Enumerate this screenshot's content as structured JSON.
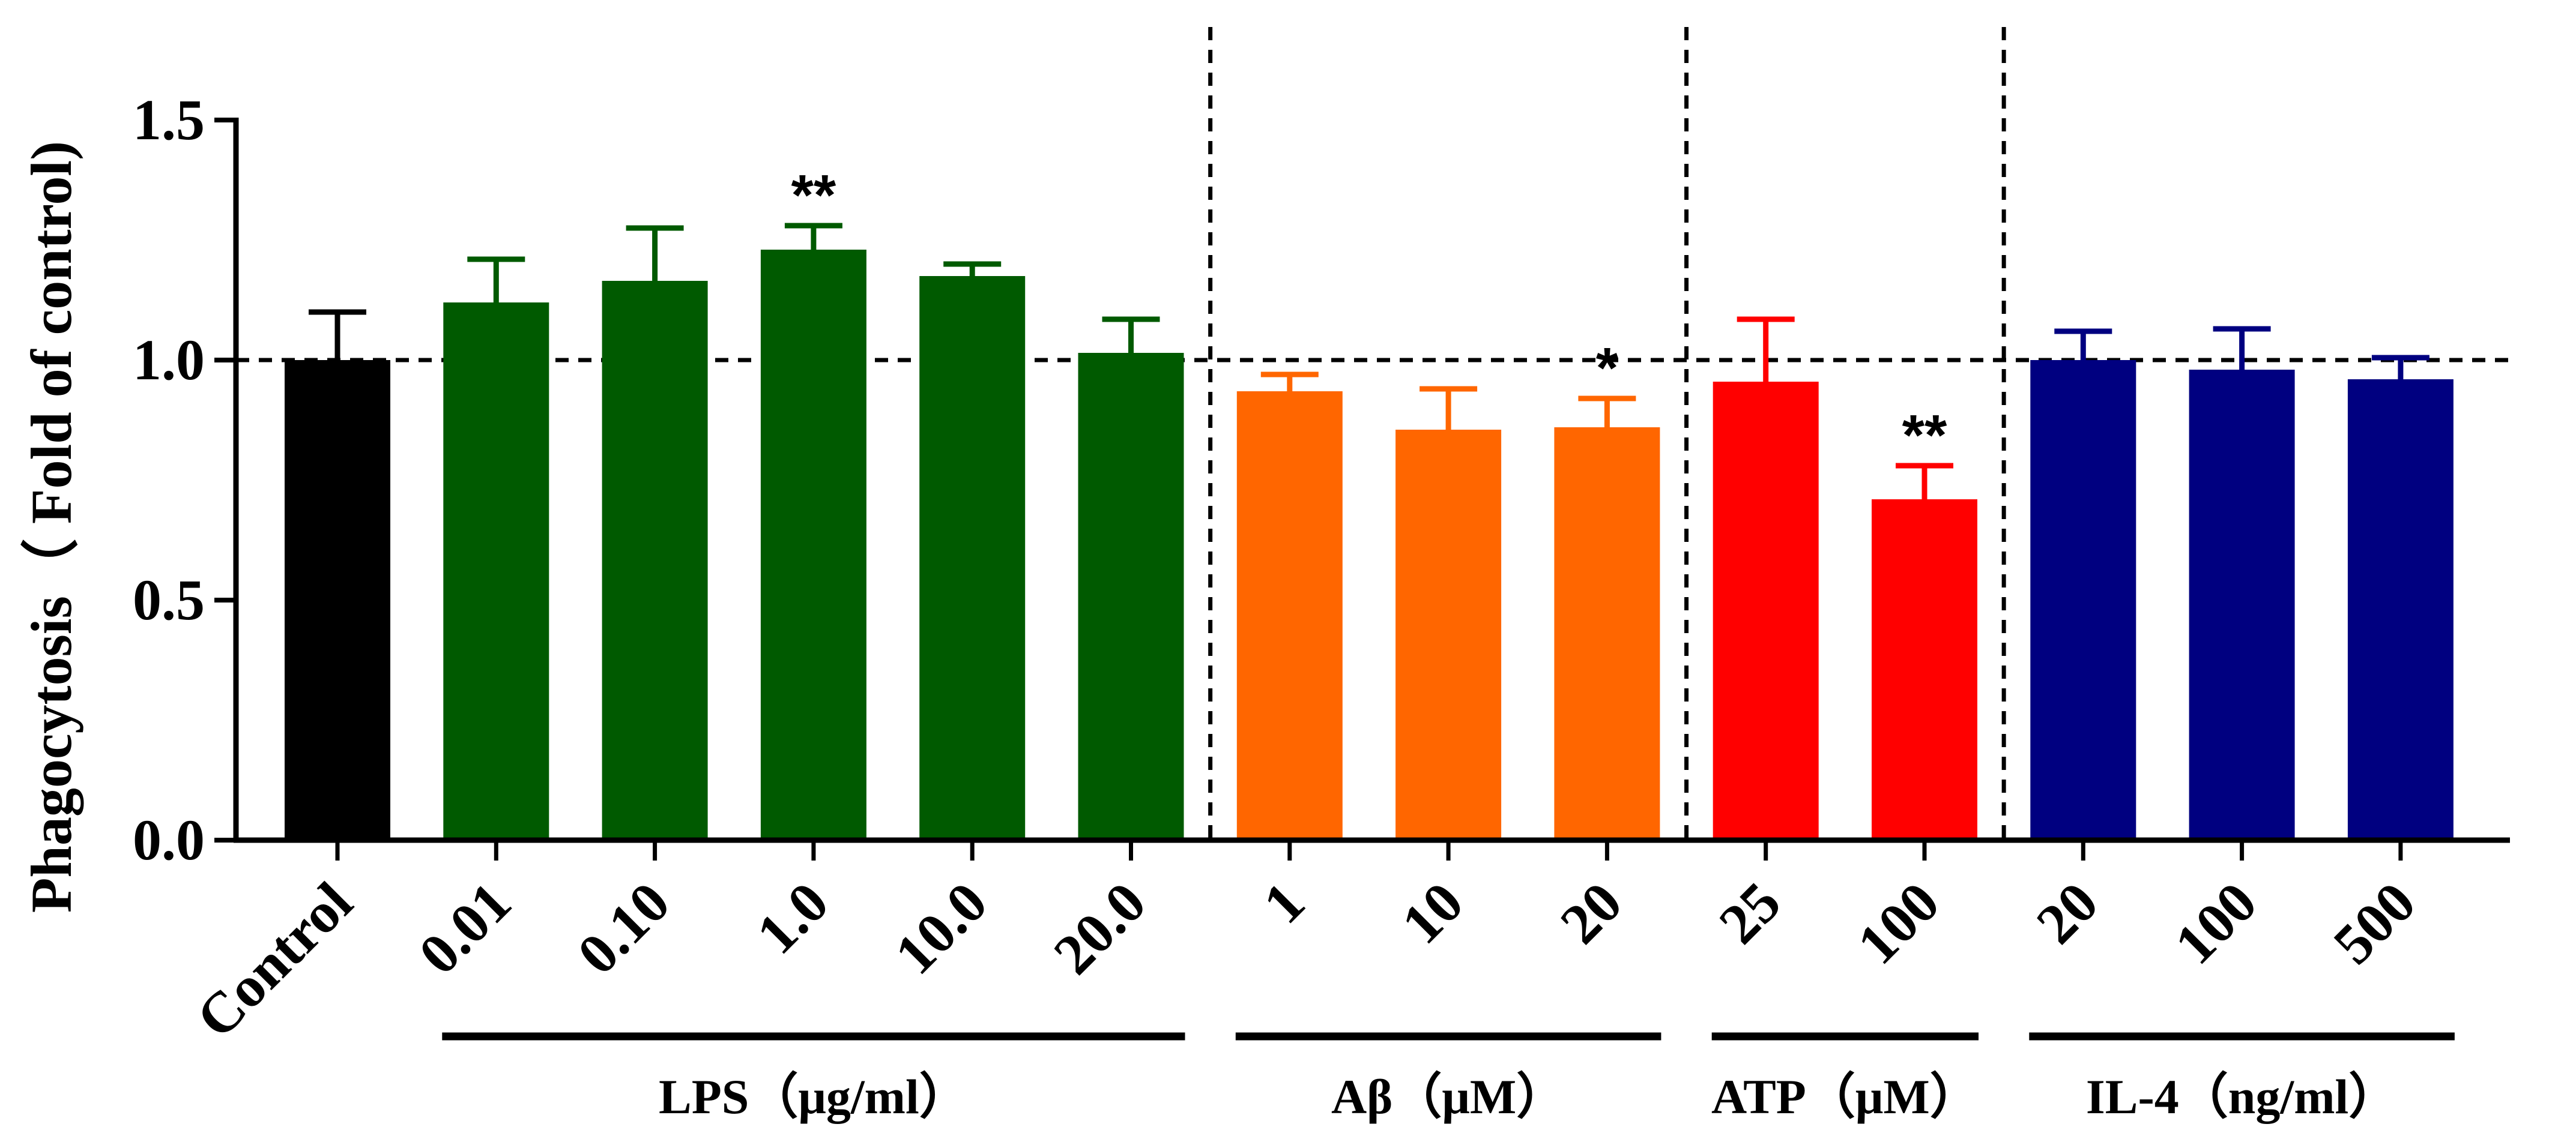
{
  "chart_data": {
    "type": "bar",
    "title": "",
    "xlabel": "",
    "ylabel": "Phagocytosis（ Fold of control)",
    "ylim": [
      0,
      1.5
    ],
    "yticks": [
      0.0,
      0.5,
      1.0,
      1.5
    ],
    "ytick_labels": [
      "0.0",
      "0.5",
      "1.0",
      "1.5"
    ],
    "reference_line": 1.0,
    "bars": [
      {
        "category": "Control",
        "value": 1.0,
        "error": 0.1,
        "color": "#000000",
        "sig": ""
      },
      {
        "category": "0.01",
        "value": 1.12,
        "error": 0.09,
        "color": "#005a00",
        "sig": ""
      },
      {
        "category": "0.10",
        "value": 1.165,
        "error": 0.11,
        "color": "#005a00",
        "sig": ""
      },
      {
        "category": "1.0",
        "value": 1.23,
        "error": 0.05,
        "color": "#005a00",
        "sig": "**"
      },
      {
        "category": "10.0",
        "value": 1.175,
        "error": 0.025,
        "color": "#005a00",
        "sig": ""
      },
      {
        "category": "20.0",
        "value": 1.015,
        "error": 0.07,
        "color": "#005a00",
        "sig": ""
      },
      {
        "category": "1",
        "value": 0.935,
        "error": 0.035,
        "color": "#ff6600",
        "sig": ""
      },
      {
        "category": "10",
        "value": 0.855,
        "error": 0.085,
        "color": "#ff6600",
        "sig": ""
      },
      {
        "category": "20",
        "value": 0.86,
        "error": 0.06,
        "color": "#ff6600",
        "sig": "*"
      },
      {
        "category": "25",
        "value": 0.955,
        "error": 0.13,
        "color": "#ff0000",
        "sig": ""
      },
      {
        "category": "100",
        "value": 0.71,
        "error": 0.07,
        "color": "#ff0000",
        "sig": "**"
      },
      {
        "category": "20",
        "value": 1.0,
        "error": 0.06,
        "color": "#000080",
        "sig": ""
      },
      {
        "category": "100",
        "value": 0.98,
        "error": 0.085,
        "color": "#000080",
        "sig": ""
      },
      {
        "category": "500",
        "value": 0.96,
        "error": 0.045,
        "color": "#000080",
        "sig": ""
      }
    ],
    "groups": [
      {
        "label": "LPS（μg/ml）",
        "start_index": 1,
        "end_index": 5
      },
      {
        "label": "Aβ（μM）",
        "start_index": 6,
        "end_index": 8
      },
      {
        "label": "ATP（μM）",
        "start_index": 9,
        "end_index": 10
      },
      {
        "label": "IL-4（ng/ml）",
        "start_index": 11,
        "end_index": 13
      }
    ],
    "group_dividers_after_index": [
      5,
      8,
      10
    ]
  }
}
